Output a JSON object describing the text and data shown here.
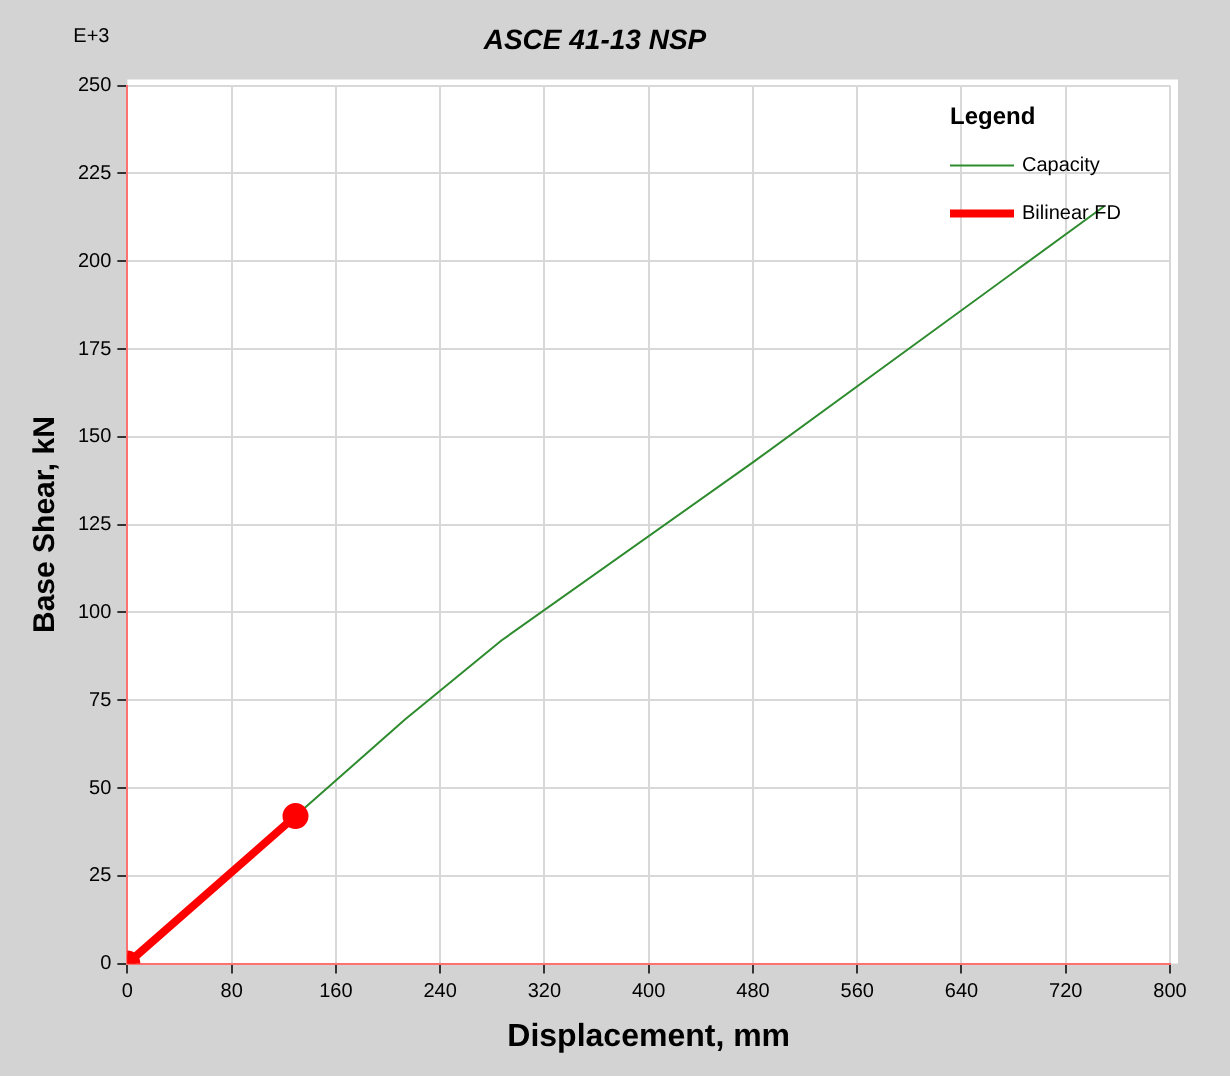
{
  "chart_data": {
    "type": "line",
    "title": "ASCE 41-13 NSP",
    "xlabel": "Displacement, mm",
    "ylabel": "Base Shear, kN",
    "legend_title": "Legend",
    "annotations": [
      "E+3"
    ],
    "series": [
      {
        "name": "Capacity",
        "color": "#2e8b2e",
        "x": [
          0,
          129,
          213,
          287,
          481,
          749
        ],
        "values": [
          0,
          42,
          69.5,
          92,
          143,
          215.5
        ],
        "marker": "none"
      },
      {
        "name": "Bilinear FD",
        "color": "#ff0000",
        "x": [
          0,
          129
        ],
        "values": [
          0,
          42
        ],
        "marker": "circle"
      }
    ],
    "xlim": [
      0,
      800
    ],
    "xticks": [
      0,
      80,
      160,
      240,
      320,
      400,
      480,
      560,
      640,
      720,
      800
    ],
    "ylim": [
      0,
      250
    ],
    "yticks": [
      0,
      25,
      50,
      75,
      100,
      125,
      150,
      175,
      200,
      225,
      250
    ],
    "grid": true,
    "legend": "top right",
    "line_style": "solid"
  }
}
